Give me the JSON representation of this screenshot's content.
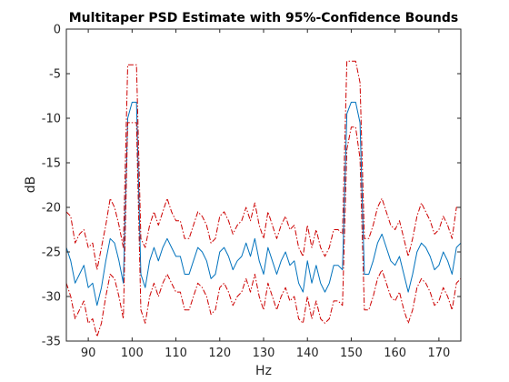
{
  "chart_data": {
    "type": "line",
    "title": "Multitaper PSD Estimate with 95%-Confidence Bounds",
    "xlabel": "Hz",
    "ylabel": "dB",
    "xlim": [
      85,
      175
    ],
    "ylim": [
      -35,
      0
    ],
    "xticks": [
      90,
      100,
      110,
      120,
      130,
      140,
      150,
      160,
      170
    ],
    "yticks": [
      -35,
      -30,
      -25,
      -20,
      -15,
      -10,
      -5,
      0
    ],
    "grid": false,
    "colors": {
      "estimate": "#0072bd",
      "bounds": "#cc0000"
    },
    "x": [
      85,
      86,
      87,
      88,
      89,
      90,
      91,
      92,
      93,
      94,
      95,
      96,
      97,
      98,
      99,
      100,
      101,
      102,
      103,
      104,
      105,
      106,
      107,
      108,
      109,
      110,
      111,
      112,
      113,
      114,
      115,
      116,
      117,
      118,
      119,
      120,
      121,
      122,
      123,
      124,
      125,
      126,
      127,
      128,
      129,
      130,
      131,
      132,
      133,
      134,
      135,
      136,
      137,
      138,
      139,
      140,
      141,
      142,
      143,
      144,
      145,
      146,
      147,
      148,
      149,
      150,
      151,
      152,
      153,
      154,
      155,
      156,
      157,
      158,
      159,
      160,
      161,
      162,
      163,
      164,
      165,
      166,
      167,
      168,
      169,
      170,
      171,
      172,
      173,
      174,
      175
    ],
    "series": [
      {
        "role": "estimate",
        "values": [
          -24.5,
          -26,
          -28.5,
          -27.5,
          -26.5,
          -29,
          -28.5,
          -31,
          -29,
          -26,
          -23.5,
          -24,
          -26,
          -28.5,
          -10,
          -8.2,
          -8.2,
          -27.5,
          -29,
          -26,
          -24.5,
          -26,
          -24.5,
          -23.5,
          -24.5,
          -25.5,
          -25.5,
          -27.5,
          -27.5,
          -26,
          -24.5,
          -25,
          -26,
          -28,
          -27.5,
          -25,
          -24.5,
          -25.5,
          -27,
          -26,
          -25.5,
          -24,
          -25.5,
          -23.5,
          -26,
          -27.5,
          -24.5,
          -26,
          -27.5,
          -26,
          -25,
          -26.5,
          -26,
          -28.5,
          -29.5,
          -26,
          -28.5,
          -26.5,
          -28.5,
          -29.5,
          -28.5,
          -26.5,
          -26.5,
          -27,
          -9.5,
          -8.2,
          -8.2,
          -10.5,
          -27.5,
          -27.5,
          -26,
          -24,
          -23,
          -24.5,
          -26,
          -26.5,
          -25.5,
          -27.5,
          -29.5,
          -27.5,
          -25,
          -24,
          -24.5,
          -25.5,
          -27,
          -26.5,
          -25,
          -26,
          -27.5,
          -24.5,
          -24
        ]
      },
      {
        "role": "upper-bound",
        "values": [
          -20.5,
          -21,
          -24,
          -23,
          -22.5,
          -24.5,
          -24,
          -27,
          -24.5,
          -22,
          -19,
          -20,
          -22,
          -24.5,
          -4,
          -4,
          -4,
          -23.5,
          -24.5,
          -22,
          -20.5,
          -22,
          -20.5,
          -19,
          -20.5,
          -21.5,
          -21.5,
          -23.5,
          -23.5,
          -22,
          -20.5,
          -21,
          -22,
          -24,
          -23.5,
          -21,
          -20.5,
          -21.5,
          -23,
          -22,
          -21.5,
          -20,
          -21.5,
          -19.5,
          -22,
          -23.5,
          -20.5,
          -22,
          -23.5,
          -22,
          -21,
          -22.5,
          -22,
          -24.5,
          -25.5,
          -22,
          -24.5,
          -22.5,
          -24.5,
          -25.5,
          -24.5,
          -22.5,
          -22.5,
          -23,
          -3.6,
          -3.6,
          -3.6,
          -6,
          -23.5,
          -23.5,
          -22,
          -20,
          -19,
          -20.5,
          -22,
          -22.5,
          -21.5,
          -23.5,
          -25.5,
          -23.5,
          -21,
          -19.5,
          -20.5,
          -21.5,
          -23,
          -22.5,
          -21,
          -22,
          -23.5,
          -20,
          -20
        ]
      },
      {
        "role": "lower-bound",
        "values": [
          -28.5,
          -30,
          -32.5,
          -31.5,
          -30.5,
          -33,
          -32.5,
          -34.5,
          -33,
          -30,
          -27.5,
          -28,
          -30,
          -32.5,
          -10.5,
          -10.5,
          -10.5,
          -31.5,
          -33,
          -30,
          -28.5,
          -30,
          -28.5,
          -27.5,
          -28.5,
          -29.5,
          -29.5,
          -31.5,
          -31.5,
          -30,
          -28.5,
          -29,
          -30,
          -32,
          -31.5,
          -29,
          -28.5,
          -29.5,
          -31,
          -30,
          -29.5,
          -28,
          -29.5,
          -27.5,
          -30,
          -31.5,
          -28.5,
          -30,
          -31.5,
          -30,
          -29,
          -30.5,
          -30,
          -32.5,
          -33,
          -30,
          -32.5,
          -30.5,
          -32.5,
          -33,
          -32.5,
          -30.5,
          -30.5,
          -31,
          -13.5,
          -11,
          -11,
          -14.5,
          -31.5,
          -31.5,
          -30,
          -28,
          -27,
          -28.5,
          -30,
          -30.5,
          -29.5,
          -31.5,
          -33,
          -31.5,
          -29,
          -28,
          -28.5,
          -29.5,
          -31,
          -30.5,
          -29,
          -30,
          -31.5,
          -28.5,
          -28
        ]
      }
    ]
  }
}
